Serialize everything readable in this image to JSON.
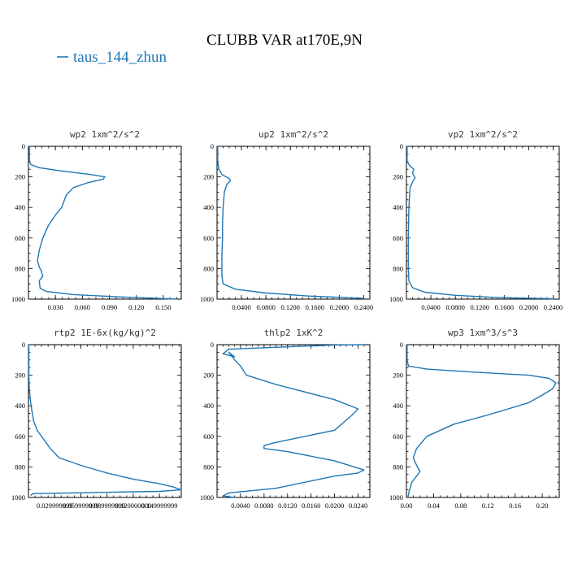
{
  "figure": {
    "title": "CLUBB VAR at170E,9N",
    "legend": [
      "taus_144_zhun"
    ],
    "colors": {
      "series": "#1f77b4",
      "axes": "#000000"
    }
  },
  "chart_data": [
    {
      "type": "line",
      "title": "wp2  1xm^2/s^2",
      "series": [
        {
          "name": "taus_144_zhun",
          "x": [
            0.001,
            0.001,
            0.003,
            0.012,
            0.035,
            0.07,
            0.085,
            0.083,
            0.065,
            0.05,
            0.042,
            0.037,
            0.03,
            0.022,
            0.016,
            0.012,
            0.01,
            0.012,
            0.014,
            0.016,
            0.012,
            0.013,
            0.02,
            0.05,
            0.1,
            0.165
          ],
          "y": [
            0,
            100,
            120,
            140,
            160,
            185,
            200,
            215,
            240,
            270,
            320,
            400,
            450,
            520,
            600,
            680,
            750,
            790,
            810,
            850,
            880,
            930,
            950,
            970,
            985,
            1000
          ]
        }
      ],
      "xlim": [
        0,
        0.17
      ],
      "ylim": [
        1000,
        0
      ],
      "xticks": [
        0.03,
        0.06,
        0.09,
        0.12,
        0.15
      ],
      "xticklabels": [
        "0.030",
        "0.060",
        "0.090",
        "0.120",
        "0.150"
      ],
      "yticks": [
        0,
        200,
        400,
        600,
        800,
        1000
      ],
      "yticklabels": [
        "0",
        "200",
        "400",
        "600",
        "800",
        "1000"
      ]
    },
    {
      "type": "line",
      "title": "up2  1xm^2/s^2",
      "series": [
        {
          "name": "taus_144_zhun",
          "x": [
            0.001,
            0.001,
            0.003,
            0.008,
            0.02,
            0.022,
            0.016,
            0.012,
            0.01,
            0.009,
            0.009,
            0.008,
            0.008,
            0.01,
            0.03,
            0.08,
            0.15,
            0.24
          ],
          "y": [
            0,
            100,
            150,
            185,
            210,
            225,
            250,
            300,
            400,
            500,
            600,
            700,
            850,
            900,
            935,
            960,
            980,
            995
          ]
        }
      ],
      "xlim": [
        0,
        0.25
      ],
      "ylim": [
        1000,
        0
      ],
      "xticks": [
        0.04,
        0.08,
        0.12,
        0.16,
        0.2,
        0.24
      ],
      "xticklabels": [
        "0.0400",
        "0.0800",
        "0.1200",
        "0.1600",
        "0.2000",
        "0.2400"
      ],
      "yticks": [
        0,
        200,
        400,
        600,
        800,
        1000
      ],
      "yticklabels": [
        "0",
        "200",
        "400",
        "600",
        "800",
        "1000"
      ]
    },
    {
      "type": "line",
      "title": "vp2  1xm^2/s^2",
      "series": [
        {
          "name": "taus_144_zhun",
          "x": [
            0.001,
            0.001,
            0.005,
            0.012,
            0.01,
            0.014,
            0.01,
            0.006,
            0.004,
            0.003,
            0.003,
            0.004,
            0.01,
            0.03,
            0.08,
            0.15,
            0.24
          ],
          "y": [
            0,
            100,
            125,
            150,
            175,
            205,
            235,
            270,
            400,
            600,
            800,
            880,
            925,
            955,
            975,
            990,
            998
          ]
        }
      ],
      "xlim": [
        0,
        0.25
      ],
      "ylim": [
        1000,
        0
      ],
      "xticks": [
        0.04,
        0.08,
        0.12,
        0.16,
        0.2,
        0.24
      ],
      "xticklabels": [
        "0.0400",
        "0.0800",
        "0.1200",
        "0.1600",
        "0.2000",
        "0.2400"
      ],
      "yticks": [
        0,
        200,
        400,
        600,
        800,
        1000
      ],
      "yticklabels": [
        "0",
        "200",
        "400",
        "600",
        "800",
        "1000"
      ]
    },
    {
      "type": "line",
      "title": "rtp2  1E-6x(kg/kg)^2",
      "series": [
        {
          "name": "taus_144_zhun",
          "x": [
            0.0005,
            0.0005,
            0.001,
            0.003,
            0.006,
            0.01,
            0.015,
            0.02,
            0.025,
            0.035,
            0.06,
            0.09,
            0.12,
            0.15,
            0.165,
            0.175,
            0.15,
            0.05,
            0.005,
            0.003
          ],
          "y": [
            0,
            200,
            300,
            400,
            500,
            560,
            600,
            640,
            680,
            740,
            790,
            840,
            880,
            910,
            930,
            950,
            960,
            970,
            975,
            985
          ]
        }
      ],
      "xlim": [
        0,
        0.175
      ],
      "ylim": [
        1000,
        0
      ],
      "xticks": [
        0.03,
        0.06,
        0.09,
        0.12,
        0.15
      ],
      "xticklabels": [
        "0.029999999",
        "0.059999999",
        "0.089999999",
        "0.120000000",
        "0.149999999"
      ],
      "yticks": [
        0,
        200,
        400,
        600,
        800,
        1000
      ],
      "yticklabels": [
        "0",
        "200",
        "400",
        "600",
        "800",
        "1000"
      ]
    },
    {
      "type": "line",
      "title": "thlp2  1xK^2",
      "series": [
        {
          "name": "taus_144_zhun",
          "x": [
            0.025,
            0.02,
            0.002,
            0.001,
            0.003,
            0.002,
            0.003,
            0.004,
            0.005,
            0.01,
            0.02,
            0.024,
            0.023,
            0.02,
            0.01,
            0.008,
            0.008,
            0.012,
            0.02,
            0.025,
            0.024,
            0.02,
            0.01,
            0.002,
            0.001,
            0.003
          ],
          "y": [
            0,
            2,
            30,
            60,
            80,
            50,
            100,
            140,
            200,
            260,
            360,
            420,
            460,
            560,
            640,
            660,
            680,
            700,
            760,
            820,
            840,
            860,
            940,
            970,
            990,
            1000
          ]
        }
      ],
      "xlim": [
        0,
        0.026
      ],
      "ylim": [
        1000,
        0
      ],
      "xticks": [
        0.004,
        0.008,
        0.012,
        0.016,
        0.02,
        0.024
      ],
      "xticklabels": [
        "0.0040",
        "0.0080",
        "0.0120",
        "0.0160",
        "0.0200",
        "0.0240"
      ],
      "yticks": [
        0,
        200,
        400,
        600,
        800,
        1000
      ],
      "yticklabels": [
        "0",
        "200",
        "400",
        "600",
        "800",
        "1000"
      ]
    },
    {
      "type": "line",
      "title": "wp3  1xm^3/s^3",
      "series": [
        {
          "name": "taus_144_zhun",
          "x": [
            0.001,
            0.001,
            0.003,
            0.03,
            0.1,
            0.18,
            0.21,
            0.22,
            0.215,
            0.2,
            0.18,
            0.15,
            0.12,
            0.07,
            0.05,
            0.03,
            0.015,
            0.01,
            0.015,
            0.02,
            0.015,
            0.008,
            0.004,
            0.002
          ],
          "y": [
            0,
            100,
            140,
            160,
            180,
            200,
            220,
            250,
            290,
            330,
            380,
            420,
            460,
            520,
            560,
            600,
            680,
            740,
            790,
            830,
            860,
            900,
            960,
            1000
          ]
        }
      ],
      "xlim": [
        0,
        0.225
      ],
      "ylim": [
        1000,
        0
      ],
      "xticks": [
        0.0,
        0.04,
        0.08,
        0.12,
        0.16,
        0.2
      ],
      "xticklabels": [
        "0.00",
        "0.04",
        "0.08",
        "0.12",
        "0.16",
        "0.20"
      ],
      "yticks": [
        0,
        200,
        400,
        600,
        800,
        1000
      ],
      "yticklabels": [
        "0",
        "200",
        "400",
        "600",
        "800",
        "1000"
      ]
    }
  ]
}
